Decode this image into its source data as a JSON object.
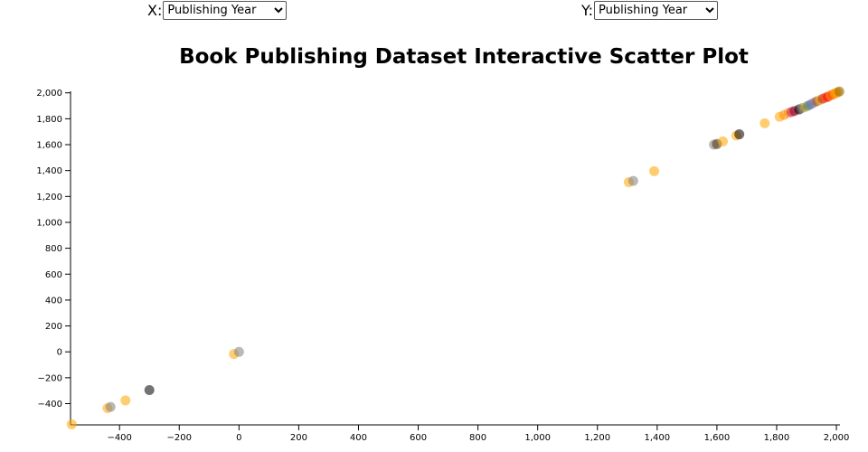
{
  "controls": {
    "x_label": "X:",
    "x_selected": "Publishing Year",
    "y_label": "Y:",
    "y_selected": "Publishing Year"
  },
  "chart_data": {
    "type": "scatter",
    "title": "Book Publishing Dataset Interactive Scatter Plot",
    "xlabel": "",
    "ylabel": "",
    "xlim": [
      -564,
      2012
    ],
    "ylim": [
      -564,
      2012
    ],
    "x_ticks": [
      "−400",
      "−200",
      "0",
      "200",
      "400",
      "600",
      "800",
      "1,000",
      "1,200",
      "1,400",
      "1,600",
      "1,800",
      "2,000"
    ],
    "y_ticks": [
      "−400",
      "−200",
      "0",
      "200",
      "400",
      "600",
      "800",
      "1,000",
      "1,200",
      "1,400",
      "1,600",
      "1,800",
      "2,000"
    ],
    "grid": false,
    "points": [
      {
        "x": -560,
        "y": -560,
        "color": "#FFA500"
      },
      {
        "x": -440,
        "y": -435,
        "color": "#FFA500"
      },
      {
        "x": -430,
        "y": -425,
        "color": "#808080"
      },
      {
        "x": -380,
        "y": -375,
        "color": "#FFA500"
      },
      {
        "x": -300,
        "y": -295,
        "color": "#000000"
      },
      {
        "x": -17,
        "y": -17,
        "color": "#FFA500"
      },
      {
        "x": 0,
        "y": 0,
        "color": "#808080"
      },
      {
        "x": 1305,
        "y": 1310,
        "color": "#FFA500"
      },
      {
        "x": 1320,
        "y": 1320,
        "color": "#808080"
      },
      {
        "x": 1390,
        "y": 1395,
        "color": "#FFA500"
      },
      {
        "x": 1590,
        "y": 1600,
        "color": "#808080"
      },
      {
        "x": 1600,
        "y": 1605,
        "color": "#4a3200"
      },
      {
        "x": 1620,
        "y": 1625,
        "color": "#FFA500"
      },
      {
        "x": 1665,
        "y": 1670,
        "color": "#FFA500"
      },
      {
        "x": 1675,
        "y": 1680,
        "color": "#000000"
      },
      {
        "x": 1760,
        "y": 1765,
        "color": "#FFA500"
      },
      {
        "x": 1810,
        "y": 1815,
        "color": "#FFA500"
      },
      {
        "x": 1825,
        "y": 1830,
        "color": "#FF8C00"
      },
      {
        "x": 1840,
        "y": 1845,
        "color": "#FF8C00"
      },
      {
        "x": 1850,
        "y": 1852,
        "color": "#C71585"
      },
      {
        "x": 1860,
        "y": 1860,
        "color": "#8B0000"
      },
      {
        "x": 1875,
        "y": 1872,
        "color": "#000000"
      },
      {
        "x": 1885,
        "y": 1882,
        "color": "#808080"
      },
      {
        "x": 1895,
        "y": 1890,
        "color": "#DAA520"
      },
      {
        "x": 1905,
        "y": 1900,
        "color": "#2E8B57"
      },
      {
        "x": 1915,
        "y": 1912,
        "color": "#6A5ACD"
      },
      {
        "x": 1925,
        "y": 1925,
        "color": "#808080"
      },
      {
        "x": 1935,
        "y": 1935,
        "color": "#A0522D"
      },
      {
        "x": 1945,
        "y": 1945,
        "color": "#FFA500"
      },
      {
        "x": 1955,
        "y": 1955,
        "color": "#B22222"
      },
      {
        "x": 1965,
        "y": 1965,
        "color": "#FF4500"
      },
      {
        "x": 1972,
        "y": 1970,
        "color": "#FF0000"
      },
      {
        "x": 1980,
        "y": 1980,
        "color": "#FF8C00"
      },
      {
        "x": 1988,
        "y": 1988,
        "color": "#FF4500"
      },
      {
        "x": 1995,
        "y": 1995,
        "color": "#FFA500"
      },
      {
        "x": 2000,
        "y": 2000,
        "color": "#FF8C00"
      },
      {
        "x": 2005,
        "y": 2005,
        "color": "#FFA500"
      },
      {
        "x": 2010,
        "y": 2010,
        "color": "#8B6508"
      }
    ]
  }
}
